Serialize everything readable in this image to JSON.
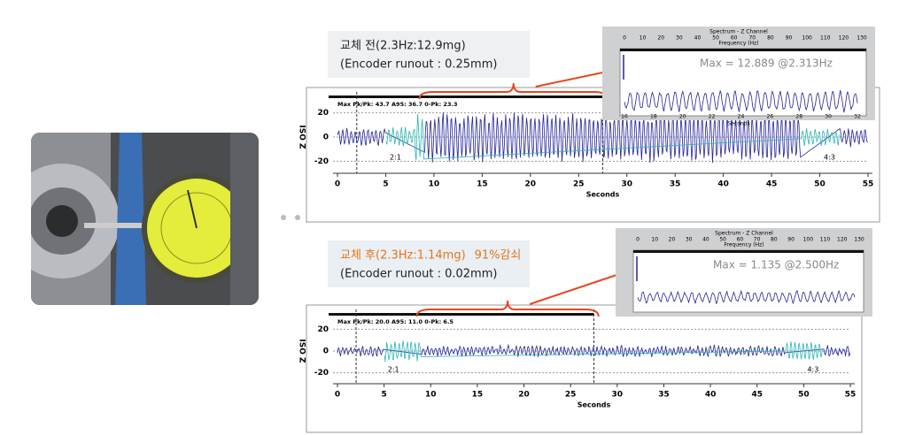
{
  "before": {
    "label": "교체 전(2.3Hz:12.9mg)",
    "runout": "(Encoder runout : 0.25mm)",
    "stats": "Max Pk/Pk: 43.7  A95: 36.7  0-Pk: 23.3",
    "markers": [
      "2:1",
      "4:3"
    ],
    "chart": {
      "xlabel": "Seconds",
      "ylabel": "ISO Z",
      "xlim": [
        0,
        55
      ],
      "ylim": [
        -30,
        30
      ],
      "xticks": [
        0,
        5,
        10,
        15,
        20,
        25,
        30,
        35,
        40,
        45,
        50,
        55
      ],
      "yticks": [
        -20,
        0,
        20
      ]
    },
    "inset": {
      "title": "Spectrum - Z Channel",
      "freq_label": "Frequency (Hz)",
      "freq_ticks": [
        0,
        10,
        20,
        30,
        40,
        50,
        60,
        70,
        80,
        90,
        100,
        110,
        120,
        130
      ],
      "max": "Max = 12.889 @2.313Hz",
      "time_label": "Seconds",
      "time_ticks": [
        16,
        18,
        20,
        22,
        24,
        26,
        28,
        30,
        32
      ]
    }
  },
  "after": {
    "label": "교체 후(2.3Hz:1.14mg)",
    "reduction": "91%감쇠",
    "runout": "(Encoder runout : 0.02mm)",
    "stats": "Max Pk/Pk: 20.0  A95: 11.0  0-Pk: 6.5",
    "markers": [
      "2:1",
      "4:3"
    ],
    "chart": {
      "xlabel": "Seconds",
      "ylabel": "ISO Z",
      "xlim": [
        0,
        55
      ],
      "ylim": [
        -30,
        30
      ],
      "xticks": [
        0,
        5,
        10,
        15,
        20,
        25,
        30,
        35,
        40,
        45,
        50,
        55
      ],
      "yticks": [
        -20,
        0,
        20
      ]
    },
    "inset": {
      "title": "Spectrum - Z Channel",
      "freq_label": "Frequency (Hz)",
      "freq_ticks": [
        0,
        10,
        20,
        30,
        40,
        50,
        60,
        70,
        80,
        90,
        100,
        110,
        120,
        130
      ],
      "max": "Max = 1.135 @2.500Hz"
    }
  }
}
